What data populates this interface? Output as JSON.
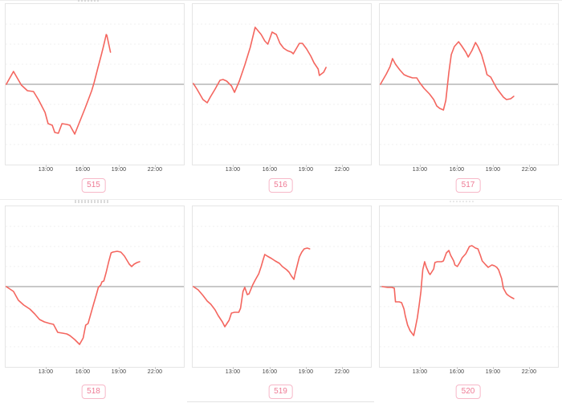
{
  "colors": {
    "line": "#f4665f",
    "zero_line": "#a6a6a6",
    "plot_border": "#e5e5e5",
    "grid_line": "#f0f0f0",
    "tick_label": "#3f3f3f",
    "tick_mark": "#c9c9c9",
    "badge_text": "#ee7b95",
    "badge_border": "#f7b8c8",
    "badge_bg": "#ffffff"
  },
  "axis": {
    "tick_labels": [
      "13:00",
      "16:00",
      "19:00",
      "22:00"
    ],
    "tick_hours": [
      13,
      16,
      19,
      22
    ],
    "hour_range": [
      9.6,
      24.3
    ],
    "gridlines": "horizontal, dashed, every quarter of half-height",
    "baseline": "solid gray line at value 0 (vertical center)"
  },
  "chart_data": [
    {
      "type": "line",
      "badge_label": "515",
      "x_unit": "time of day (hours)",
      "y_unit": "relative value, baseline 0, half-height = 100",
      "points": [
        [
          9.6,
          0
        ],
        [
          10.25,
          16
        ],
        [
          10.9,
          -1
        ],
        [
          11.4,
          -8
        ],
        [
          11.9,
          -9
        ],
        [
          12.3,
          -19
        ],
        [
          12.85,
          -35
        ],
        [
          13.1,
          -49
        ],
        [
          13.45,
          -51
        ],
        [
          13.65,
          -60
        ],
        [
          13.95,
          -61
        ],
        [
          14.25,
          -49
        ],
        [
          14.65,
          -50
        ],
        [
          14.9,
          -51
        ],
        [
          15.3,
          -62
        ],
        [
          15.75,
          -45
        ],
        [
          16.15,
          -30
        ],
        [
          16.4,
          -20
        ],
        [
          16.7,
          -8
        ],
        [
          16.9,
          2
        ],
        [
          17.2,
          20
        ],
        [
          17.5,
          37
        ],
        [
          17.7,
          49
        ],
        [
          17.9,
          62
        ],
        [
          17.95,
          61
        ],
        [
          18.25,
          40
        ]
      ]
    },
    {
      "type": "line",
      "badge_label": "516",
      "x_unit": "time of day (hours)",
      "y_unit": "relative value, baseline 0, half-height = 100",
      "points": [
        [
          9.6,
          1
        ],
        [
          9.95,
          -6
        ],
        [
          10.45,
          -19
        ],
        [
          10.8,
          -23
        ],
        [
          11.05,
          -16
        ],
        [
          11.45,
          -6
        ],
        [
          11.85,
          5
        ],
        [
          12.1,
          6
        ],
        [
          12.4,
          4
        ],
        [
          12.8,
          -2
        ],
        [
          13.05,
          -10
        ],
        [
          13.45,
          4
        ],
        [
          13.9,
          24
        ],
        [
          14.35,
          46
        ],
        [
          14.75,
          71
        ],
        [
          15.25,
          62
        ],
        [
          15.55,
          54
        ],
        [
          15.8,
          50
        ],
        [
          16.15,
          65
        ],
        [
          16.5,
          62
        ],
        [
          16.8,
          51
        ],
        [
          17.1,
          45
        ],
        [
          17.4,
          42
        ],
        [
          17.75,
          40
        ],
        [
          17.9,
          38
        ],
        [
          18.4,
          51
        ],
        [
          18.65,
          51
        ],
        [
          19.0,
          44
        ],
        [
          19.35,
          35
        ],
        [
          19.6,
          27
        ],
        [
          19.95,
          19
        ],
        [
          20.05,
          11
        ],
        [
          20.4,
          15
        ],
        [
          20.6,
          21
        ]
      ]
    },
    {
      "type": "line",
      "badge_label": "517",
      "x_unit": "time of day (hours)",
      "y_unit": "relative value, baseline 0, half-height = 100",
      "points": [
        [
          9.6,
          0
        ],
        [
          10.15,
          13
        ],
        [
          10.45,
          22
        ],
        [
          10.65,
          32
        ],
        [
          10.9,
          25
        ],
        [
          11.25,
          18
        ],
        [
          11.6,
          12
        ],
        [
          11.9,
          10
        ],
        [
          12.3,
          8
        ],
        [
          12.65,
          8
        ],
        [
          12.9,
          2
        ],
        [
          13.25,
          -5
        ],
        [
          13.7,
          -12
        ],
        [
          14.05,
          -19
        ],
        [
          14.3,
          -27
        ],
        [
          14.55,
          -30
        ],
        [
          14.85,
          -32
        ],
        [
          15.05,
          -20
        ],
        [
          15.3,
          15
        ],
        [
          15.5,
          37
        ],
        [
          15.75,
          47
        ],
        [
          16.1,
          53
        ],
        [
          16.35,
          48
        ],
        [
          16.7,
          40
        ],
        [
          16.9,
          34
        ],
        [
          17.2,
          42
        ],
        [
          17.5,
          52
        ],
        [
          17.7,
          47
        ],
        [
          18.0,
          37
        ],
        [
          18.3,
          21
        ],
        [
          18.45,
          12
        ],
        [
          18.75,
          9
        ],
        [
          19.0,
          2
        ],
        [
          19.25,
          -5
        ],
        [
          19.55,
          -11
        ],
        [
          19.8,
          -16
        ],
        [
          20.05,
          -19
        ],
        [
          20.4,
          -18
        ],
        [
          20.65,
          -15
        ]
      ]
    },
    {
      "type": "line",
      "badge_label": "518",
      "x_unit": "time of day (hours)",
      "y_unit": "relative value, baseline 0, half-height = 100",
      "points": [
        [
          9.6,
          0
        ],
        [
          10.25,
          -6
        ],
        [
          10.65,
          -17
        ],
        [
          11.1,
          -23
        ],
        [
          11.6,
          -28
        ],
        [
          12.0,
          -34
        ],
        [
          12.4,
          -41
        ],
        [
          12.8,
          -44
        ],
        [
          13.25,
          -46
        ],
        [
          13.55,
          -47
        ],
        [
          13.9,
          -57
        ],
        [
          14.3,
          -58
        ],
        [
          14.65,
          -59
        ],
        [
          14.9,
          -61
        ],
        [
          15.3,
          -66
        ],
        [
          15.7,
          -72
        ],
        [
          16.0,
          -64
        ],
        [
          16.2,
          -48
        ],
        [
          16.4,
          -46
        ],
        [
          16.85,
          -22
        ],
        [
          17.1,
          -9
        ],
        [
          17.25,
          -1
        ],
        [
          17.45,
          2
        ],
        [
          17.55,
          6
        ],
        [
          17.7,
          7
        ],
        [
          17.9,
          18
        ],
        [
          18.1,
          31
        ],
        [
          18.3,
          42
        ],
        [
          18.45,
          43
        ],
        [
          18.8,
          44
        ],
        [
          19.1,
          43
        ],
        [
          19.4,
          38
        ],
        [
          19.6,
          33
        ],
        [
          19.8,
          28
        ],
        [
          20.0,
          25
        ],
        [
          20.2,
          28
        ],
        [
          20.45,
          30
        ],
        [
          20.65,
          31
        ]
      ]
    },
    {
      "type": "line",
      "badge_label": "519",
      "x_unit": "time of day (hours)",
      "y_unit": "relative value, baseline 0, half-height = 100",
      "points": [
        [
          9.6,
          0
        ],
        [
          10.05,
          -4
        ],
        [
          10.45,
          -11
        ],
        [
          10.8,
          -18
        ],
        [
          11.1,
          -22
        ],
        [
          11.45,
          -29
        ],
        [
          11.7,
          -36
        ],
        [
          12.05,
          -44
        ],
        [
          12.25,
          -50
        ],
        [
          12.6,
          -42
        ],
        [
          12.8,
          -33
        ],
        [
          13.05,
          -32
        ],
        [
          13.4,
          -32
        ],
        [
          13.55,
          -27
        ],
        [
          13.75,
          -6
        ],
        [
          13.9,
          -1
        ],
        [
          14.1,
          -10
        ],
        [
          14.25,
          -9
        ],
        [
          14.55,
          2
        ],
        [
          14.75,
          8
        ],
        [
          15.05,
          16
        ],
        [
          15.25,
          25
        ],
        [
          15.4,
          33
        ],
        [
          15.55,
          40
        ],
        [
          15.75,
          38
        ],
        [
          16.1,
          35
        ],
        [
          16.4,
          32
        ],
        [
          16.75,
          29
        ],
        [
          17.0,
          25
        ],
        [
          17.35,
          21
        ],
        [
          17.55,
          18
        ],
        [
          17.75,
          13
        ],
        [
          17.95,
          9
        ],
        [
          18.05,
          16
        ],
        [
          18.25,
          28
        ],
        [
          18.4,
          37
        ],
        [
          18.6,
          43
        ],
        [
          18.8,
          47
        ],
        [
          19.05,
          48
        ],
        [
          19.25,
          47
        ]
      ]
    },
    {
      "type": "line",
      "badge_label": "520",
      "x_unit": "time of day (hours)",
      "y_unit": "relative value, baseline 0, half-height = 100",
      "points": [
        [
          9.8,
          0
        ],
        [
          10.25,
          -1
        ],
        [
          10.6,
          -1
        ],
        [
          10.8,
          -2
        ],
        [
          10.9,
          -19
        ],
        [
          11.2,
          -19
        ],
        [
          11.4,
          -20
        ],
        [
          11.6,
          -28
        ],
        [
          11.7,
          -36
        ],
        [
          11.9,
          -48
        ],
        [
          12.1,
          -55
        ],
        [
          12.4,
          -61
        ],
        [
          12.5,
          -54
        ],
        [
          12.7,
          -39
        ],
        [
          12.85,
          -23
        ],
        [
          13.0,
          -6
        ],
        [
          13.05,
          4
        ],
        [
          13.15,
          21
        ],
        [
          13.3,
          31
        ],
        [
          13.45,
          24
        ],
        [
          13.65,
          17
        ],
        [
          13.75,
          15
        ],
        [
          14.05,
          22
        ],
        [
          14.15,
          30
        ],
        [
          14.35,
          31
        ],
        [
          14.7,
          31
        ],
        [
          14.85,
          32
        ],
        [
          15.1,
          42
        ],
        [
          15.3,
          45
        ],
        [
          15.45,
          39
        ],
        [
          15.7,
          32
        ],
        [
          15.8,
          27
        ],
        [
          16.0,
          25
        ],
        [
          16.2,
          30
        ],
        [
          16.4,
          36
        ],
        [
          16.7,
          41
        ],
        [
          16.9,
          47
        ],
        [
          17.0,
          50
        ],
        [
          17.2,
          51
        ],
        [
          17.5,
          48
        ],
        [
          17.7,
          47
        ],
        [
          17.9,
          39
        ],
        [
          18.05,
          32
        ],
        [
          18.35,
          27
        ],
        [
          18.55,
          24
        ],
        [
          18.75,
          26
        ],
        [
          18.85,
          27
        ],
        [
          19.05,
          26
        ],
        [
          19.25,
          24
        ],
        [
          19.4,
          21
        ],
        [
          19.65,
          10
        ],
        [
          19.8,
          -2
        ],
        [
          20.05,
          -9
        ],
        [
          20.2,
          -11
        ],
        [
          20.4,
          -13
        ],
        [
          20.65,
          -15
        ]
      ]
    }
  ]
}
